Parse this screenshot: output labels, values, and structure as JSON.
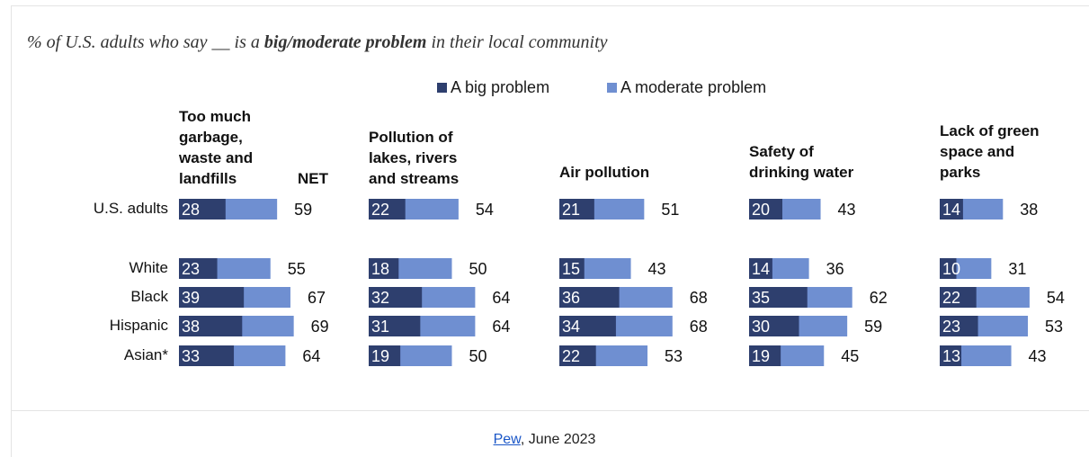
{
  "title": {
    "pre": "% of U.S. adults who say __ is a ",
    "bold": "big/moderate problem",
    "post": " in their local community"
  },
  "legend": [
    {
      "label": "A big problem",
      "color": "#2e3f6e"
    },
    {
      "label": "A moderate problem",
      "color": "#6f8fd1"
    }
  ],
  "net_label": "NET",
  "footer": {
    "link": "Pew",
    "text": ", June 2023"
  },
  "chart_data": {
    "type": "bar",
    "stacked": true,
    "rows": [
      "U.S. adults",
      "White",
      "Black",
      "Hispanic",
      "Asian*"
    ],
    "panels": [
      {
        "header": "Too much\ngarbage,\nwaste and\nlandfills",
        "big": [
          28,
          23,
          39,
          38,
          33
        ],
        "net": [
          59,
          55,
          67,
          69,
          64
        ]
      },
      {
        "header": "Pollution of\nlakes, rivers\nand streams",
        "big": [
          22,
          18,
          32,
          31,
          19
        ],
        "net": [
          54,
          50,
          64,
          64,
          50
        ]
      },
      {
        "header": "Air pollution",
        "big": [
          21,
          15,
          36,
          34,
          22
        ],
        "net": [
          51,
          43,
          68,
          68,
          53
        ]
      },
      {
        "header": "Safety of\ndrinking water",
        "big": [
          20,
          14,
          35,
          30,
          19
        ],
        "net": [
          43,
          36,
          62,
          59,
          45
        ]
      },
      {
        "header": "Lack of green\nspace and\nparks",
        "big": [
          14,
          10,
          22,
          23,
          13
        ],
        "net": [
          38,
          31,
          54,
          53,
          43
        ]
      }
    ],
    "series": [
      {
        "name": "A big problem"
      },
      {
        "name": "A moderate problem"
      }
    ]
  }
}
